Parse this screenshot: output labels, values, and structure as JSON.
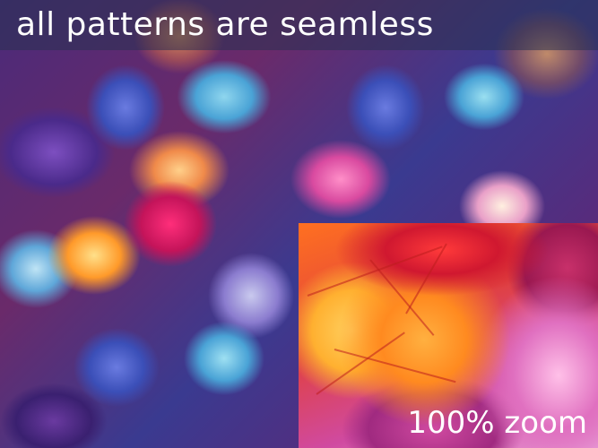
{
  "banner": {
    "title": "all patterns are seamless"
  },
  "zoom_panel": {
    "label": "100% zoom"
  }
}
